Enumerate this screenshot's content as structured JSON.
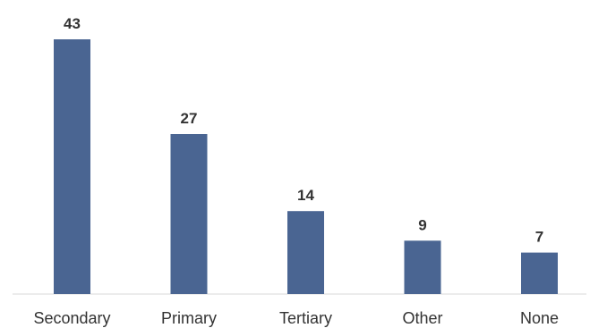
{
  "chart_data": {
    "type": "bar",
    "categories": [
      "Secondary",
      "Primary",
      "Tertiary",
      "Other",
      "None"
    ],
    "values": [
      43,
      27,
      14,
      9,
      7
    ],
    "title": "",
    "xlabel": "",
    "ylabel": "",
    "ylim": [
      0,
      43
    ],
    "grid": false,
    "legend": "none",
    "data_labels": true,
    "bar_color": "#4a6592",
    "axis_color": "#d9d9d9",
    "text_color": "#333333"
  }
}
